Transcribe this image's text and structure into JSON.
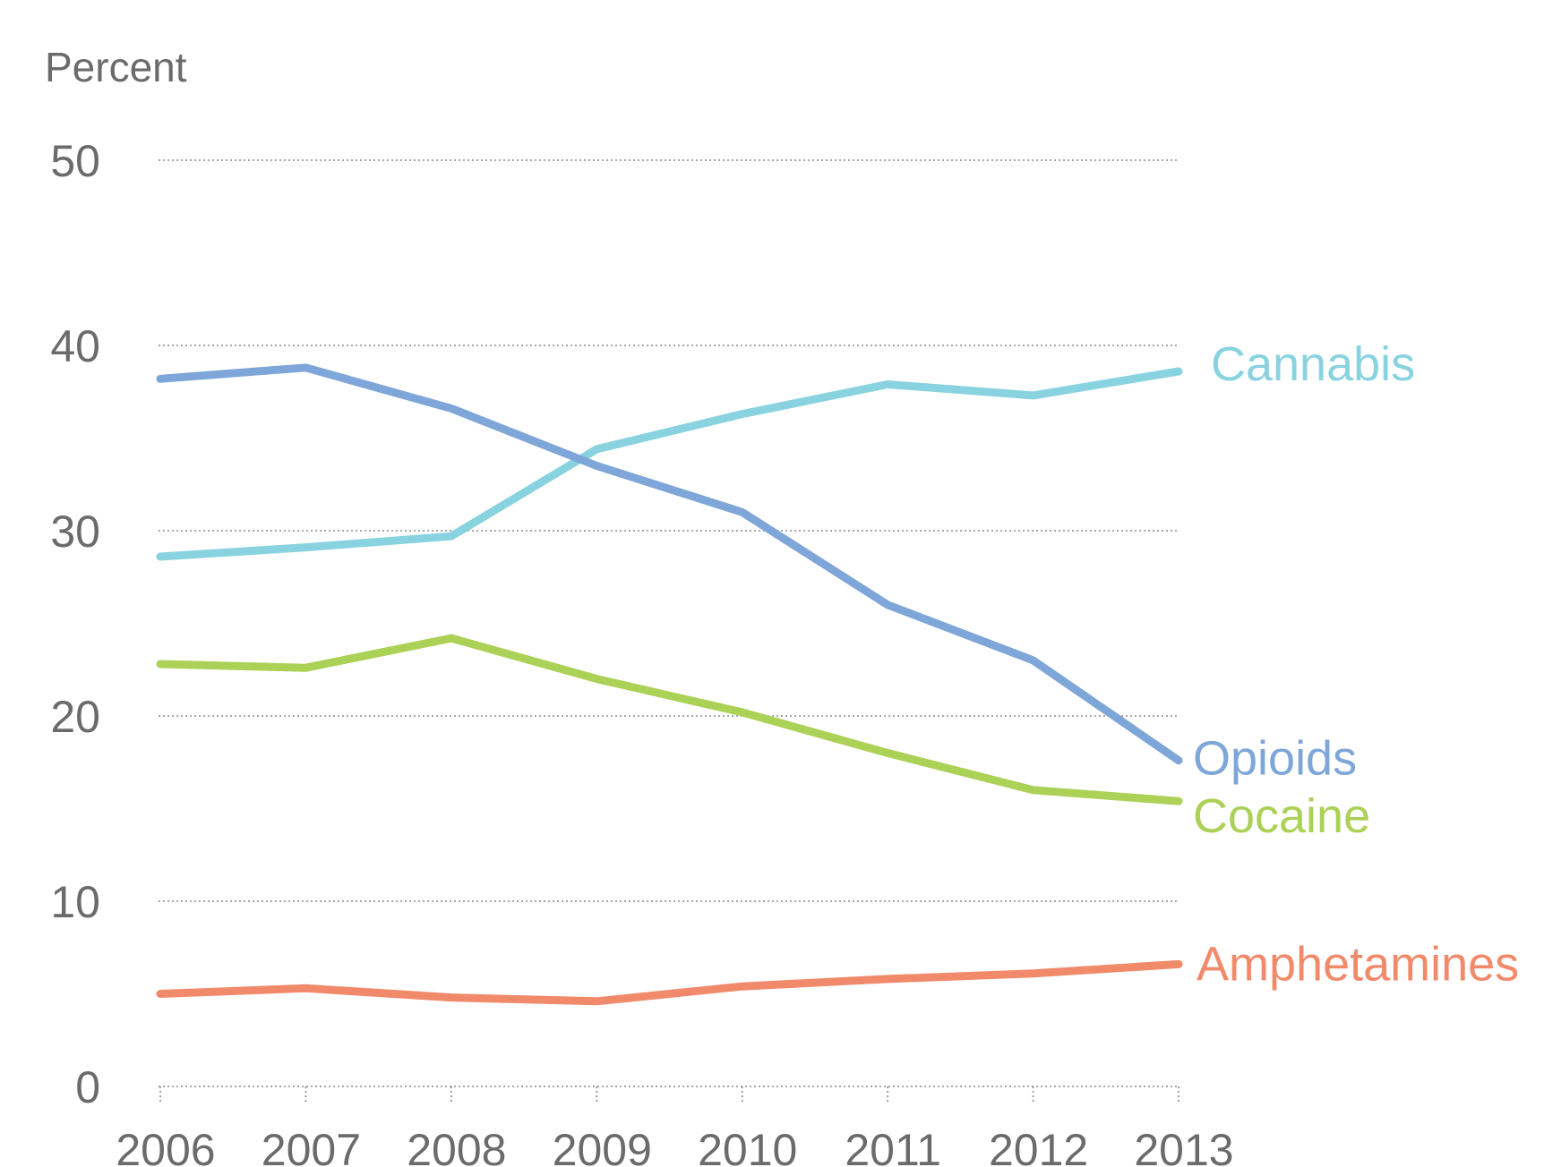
{
  "chart_data": {
    "type": "line",
    "ylabel": "Percent",
    "xlabel": "",
    "title": "",
    "x": [
      "2006",
      "2007",
      "2008",
      "2009",
      "2010",
      "2011",
      "2012",
      "2013"
    ],
    "ylim": [
      0,
      50
    ],
    "yticks": [
      0,
      10,
      20,
      30,
      40,
      50
    ],
    "grid": true,
    "legend": "inline labels at line ends",
    "series": [
      {
        "name": "Cannabis",
        "color": "#89d3e0",
        "values": [
          28.6,
          29.1,
          29.7,
          34.4,
          36.3,
          37.9,
          37.3,
          38.6
        ]
      },
      {
        "name": "Opioids",
        "color": "#7ea6d8",
        "values": [
          38.2,
          38.8,
          36.6,
          33.5,
          31.0,
          26.0,
          23.0,
          17.6
        ]
      },
      {
        "name": "Cocaine",
        "color": "#abd156",
        "values": [
          22.8,
          22.6,
          24.2,
          22.0,
          20.2,
          18.0,
          16.0,
          15.4
        ]
      },
      {
        "name": "Amphetamines",
        "color": "#f18a6b",
        "values": [
          5.0,
          5.3,
          4.8,
          4.6,
          5.4,
          5.8,
          6.1,
          6.6
        ]
      }
    ]
  }
}
